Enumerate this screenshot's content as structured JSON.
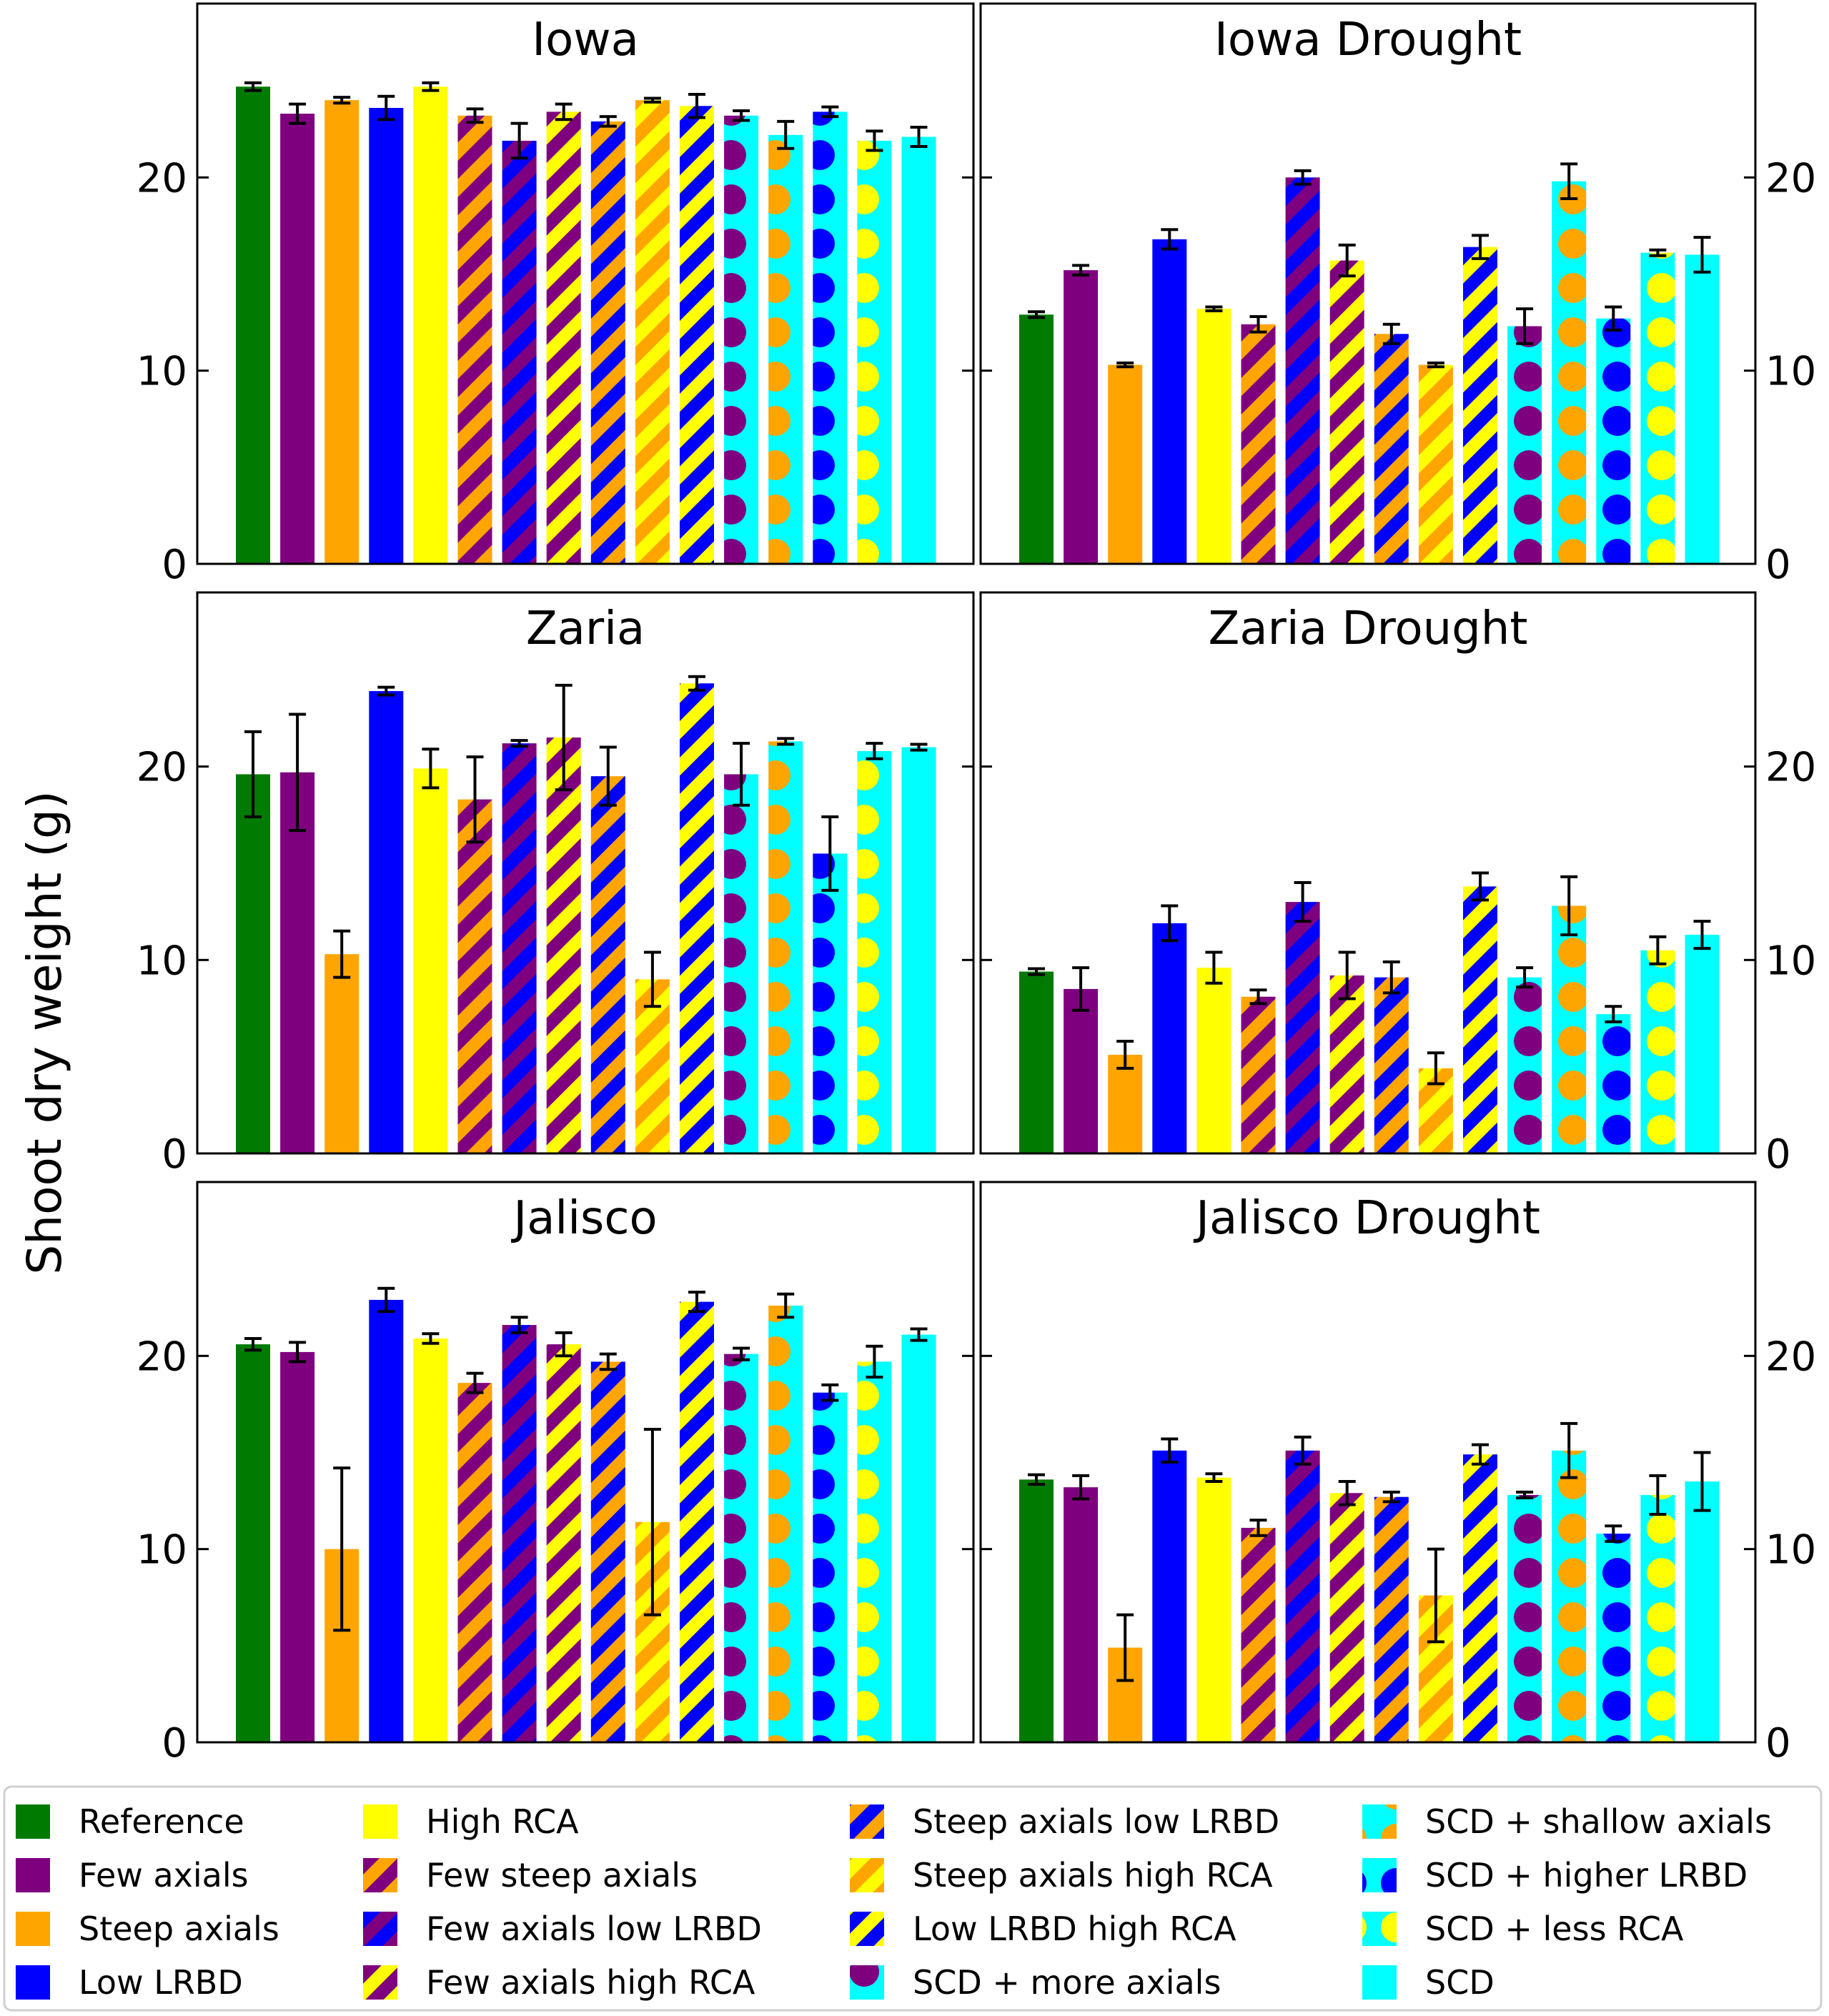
{
  "colors": {
    "green": "#007a00",
    "purple": "#7f007f",
    "orange": "#ffa500",
    "blue": "#0000ff",
    "yellow": "#ffff00",
    "cyan": "#00ffff"
  },
  "chart_data": {
    "type": "bar",
    "ylabel": "Shoot dry weight (g)",
    "ylim": [
      0,
      29
    ],
    "yticks": [
      0,
      10,
      20
    ],
    "legend": [
      {
        "label": "Reference",
        "fill": "solid",
        "c1": "green"
      },
      {
        "label": "Few axials",
        "fill": "solid",
        "c1": "purple"
      },
      {
        "label": "Steep axials",
        "fill": "solid",
        "c1": "orange"
      },
      {
        "label": "Low LRBD",
        "fill": "solid",
        "c1": "blue"
      },
      {
        "label": "High RCA",
        "fill": "solid",
        "c1": "yellow"
      },
      {
        "label": "Few steep axials",
        "fill": "stripe",
        "c1": "purple",
        "c2": "orange"
      },
      {
        "label": "Few axials low LRBD",
        "fill": "stripe",
        "c1": "purple",
        "c2": "blue"
      },
      {
        "label": "Few axials high RCA",
        "fill": "stripe",
        "c1": "purple",
        "c2": "yellow"
      },
      {
        "label": "Steep axials low LRBD",
        "fill": "stripe",
        "c1": "orange",
        "c2": "blue"
      },
      {
        "label": "Steep axials high RCA",
        "fill": "stripe",
        "c1": "orange",
        "c2": "yellow"
      },
      {
        "label": "Low LRBD high RCA",
        "fill": "stripe",
        "c1": "blue",
        "c2": "yellow"
      },
      {
        "label": "SCD + more axials",
        "fill": "dots",
        "c1": "cyan",
        "c2": "purple"
      },
      {
        "label": "SCD + shallow axials",
        "fill": "dots",
        "c1": "cyan",
        "c2": "orange"
      },
      {
        "label": "SCD + higher LRBD",
        "fill": "dots",
        "c1": "cyan",
        "c2": "blue"
      },
      {
        "label": "SCD + less RCA",
        "fill": "dots",
        "c1": "cyan",
        "c2": "yellow"
      },
      {
        "label": "SCD",
        "fill": "solid",
        "c1": "cyan"
      }
    ],
    "panels": [
      {
        "title": "Iowa",
        "values": [
          24.7,
          23.3,
          24.0,
          23.6,
          24.7,
          23.2,
          21.9,
          23.4,
          22.9,
          24.0,
          23.7,
          23.2,
          22.2,
          23.4,
          21.9,
          22.1
        ],
        "errors": [
          0.2,
          0.5,
          0.15,
          0.6,
          0.2,
          0.35,
          0.9,
          0.4,
          0.25,
          0.1,
          0.6,
          0.25,
          0.7,
          0.25,
          0.5,
          0.5
        ]
      },
      {
        "title": "Iowa Drought",
        "values": [
          12.9,
          15.2,
          10.3,
          16.8,
          13.2,
          12.4,
          20.0,
          15.7,
          11.9,
          10.3,
          16.4,
          12.3,
          19.8,
          12.7,
          16.1,
          16.0
        ],
        "errors": [
          0.15,
          0.25,
          0.1,
          0.5,
          0.1,
          0.4,
          0.35,
          0.8,
          0.5,
          0.1,
          0.6,
          0.9,
          0.9,
          0.6,
          0.15,
          0.9
        ]
      },
      {
        "title": "Zaria",
        "values": [
          19.6,
          19.7,
          10.3,
          23.9,
          19.9,
          18.3,
          21.2,
          21.5,
          19.5,
          9.0,
          24.3,
          19.6,
          21.3,
          15.5,
          20.8,
          21.0
        ],
        "errors": [
          2.2,
          3.0,
          1.2,
          0.2,
          1.0,
          2.2,
          0.15,
          2.7,
          1.5,
          1.4,
          0.35,
          1.6,
          0.15,
          1.9,
          0.4,
          0.15
        ]
      },
      {
        "title": "Zaria Drought",
        "values": [
          9.4,
          8.5,
          5.1,
          11.9,
          9.6,
          8.1,
          13.0,
          9.2,
          9.1,
          4.4,
          13.8,
          9.1,
          12.8,
          7.2,
          10.5,
          11.3
        ],
        "errors": [
          0.15,
          1.1,
          0.7,
          0.9,
          0.8,
          0.35,
          1.0,
          1.2,
          0.8,
          0.8,
          0.7,
          0.5,
          1.5,
          0.4,
          0.7,
          0.7
        ]
      },
      {
        "title": "Jalisco",
        "values": [
          20.6,
          20.2,
          10.0,
          22.9,
          20.9,
          18.6,
          21.6,
          20.6,
          19.7,
          11.4,
          22.8,
          20.1,
          22.6,
          18.1,
          19.7,
          21.1
        ],
        "errors": [
          0.3,
          0.5,
          4.2,
          0.6,
          0.25,
          0.5,
          0.4,
          0.6,
          0.4,
          4.8,
          0.5,
          0.3,
          0.6,
          0.4,
          0.8,
          0.3
        ]
      },
      {
        "title": "Jalisco Drought",
        "values": [
          13.6,
          13.2,
          4.9,
          15.1,
          13.7,
          11.1,
          15.1,
          12.9,
          12.7,
          7.6,
          14.9,
          12.8,
          15.1,
          10.8,
          12.8,
          13.5
        ],
        "errors": [
          0.25,
          0.6,
          1.7,
          0.6,
          0.2,
          0.4,
          0.7,
          0.6,
          0.25,
          2.4,
          0.5,
          0.15,
          1.4,
          0.4,
          1.0,
          1.5
        ]
      }
    ]
  }
}
